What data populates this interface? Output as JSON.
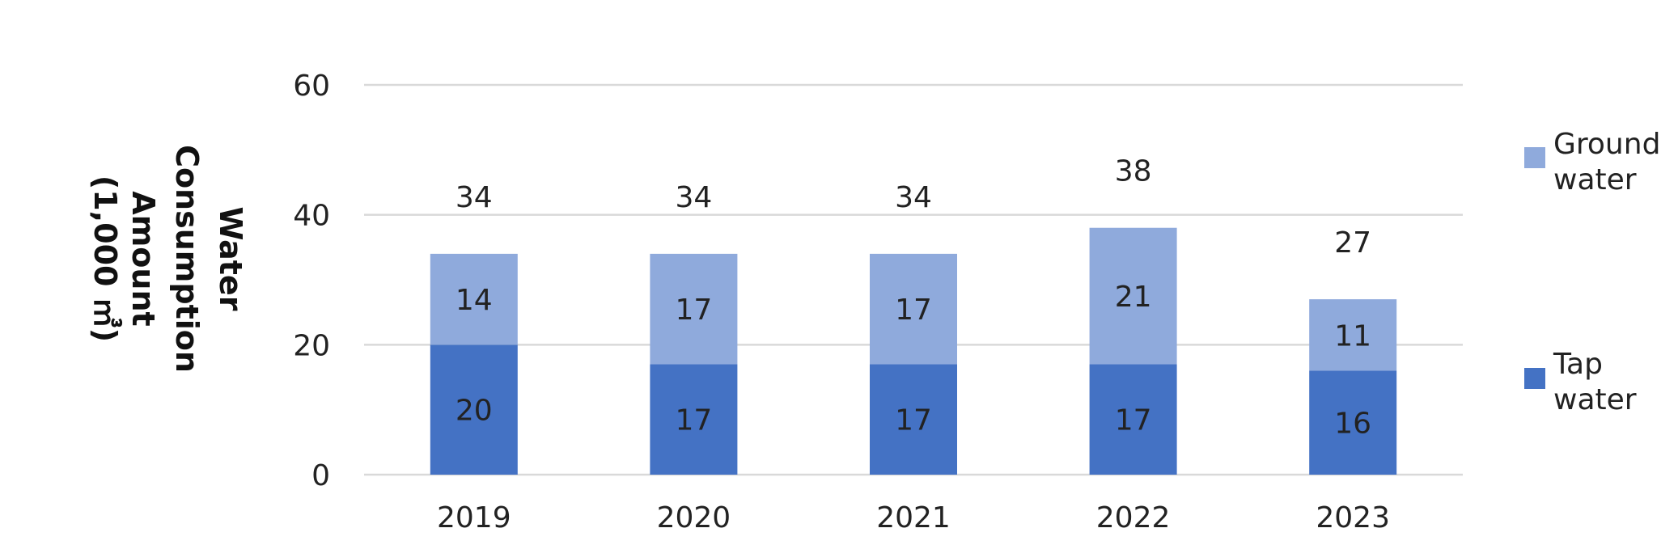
{
  "chart_data": {
    "type": "bar",
    "stacked": true,
    "title": "",
    "xlabel": "",
    "ylabel": [
      "Water",
      "Consumption",
      "Amount",
      "(1,000 ㎥)"
    ],
    "categories": [
      "2019",
      "2020",
      "2021",
      "2022",
      "2023"
    ],
    "series": [
      {
        "name": "Tap water",
        "values": [
          20,
          17,
          17,
          17,
          16
        ],
        "color": "#4472c4"
      },
      {
        "name": "Ground water",
        "values": [
          14,
          17,
          17,
          21,
          11
        ],
        "color": "#8faadc"
      }
    ],
    "totals": [
      34,
      34,
      34,
      38,
      27
    ],
    "ylim": [
      0,
      60
    ],
    "yticks": [
      "0",
      "20",
      "40",
      "60"
    ],
    "grid": true,
    "legend": {
      "position": "right",
      "entries": [
        {
          "series": "Ground water",
          "lines": [
            "Ground",
            "water"
          ],
          "color": "#8faadc"
        },
        {
          "series": "Tap water",
          "lines": [
            "Tap",
            "water"
          ],
          "color": "#4472c4"
        }
      ]
    }
  }
}
